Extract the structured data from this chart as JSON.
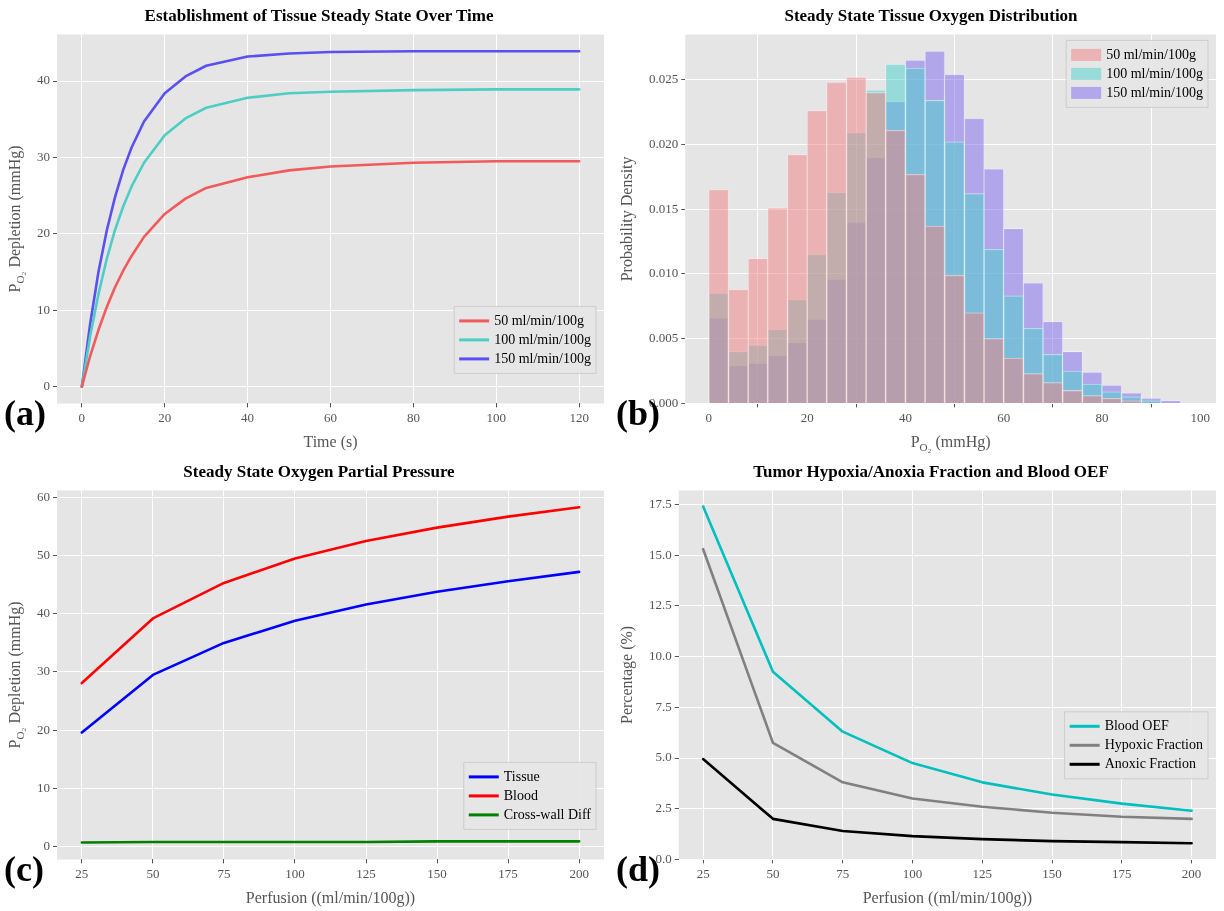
{
  "chart_data": [
    {
      "type": "line",
      "title": "Establishment of Tissue Steady State Over Time",
      "xlabel": "Time (s)",
      "ylabel": "P$_{O₂}$ Depletion (mmHg)",
      "x": [
        0,
        2,
        4,
        6,
        8,
        10,
        12,
        15,
        20,
        25,
        30,
        40,
        50,
        60,
        80,
        100,
        120
      ],
      "series": [
        {
          "name": "50 ml/min/100g",
          "color": "#f05a5a",
          "values": [
            0,
            4.0,
            7.4,
            10.4,
            13.0,
            15.2,
            17.1,
            19.6,
            22.6,
            24.6,
            26.0,
            27.4,
            28.3,
            28.8,
            29.3,
            29.5,
            29.5
          ]
        },
        {
          "name": "100 ml/min/100g",
          "color": "#4ecdc4",
          "values": [
            0,
            6.6,
            12.1,
            16.7,
            20.5,
            23.6,
            26.2,
            29.3,
            32.9,
            35.1,
            36.5,
            37.8,
            38.4,
            38.6,
            38.8,
            38.9,
            38.9
          ]
        },
        {
          "name": "150 ml/min/100g",
          "color": "#5a50f0",
          "values": [
            0,
            8.2,
            15.0,
            20.4,
            24.8,
            28.4,
            31.3,
            34.7,
            38.4,
            40.6,
            42.0,
            43.2,
            43.6,
            43.8,
            43.9,
            43.9,
            43.9
          ]
        }
      ],
      "xlim": [
        -6,
        126
      ],
      "xticks": [
        0,
        20,
        40,
        60,
        80,
        100,
        120
      ],
      "ylim": [
        -2.2,
        46.1
      ],
      "yticks": [
        0,
        10,
        20,
        30,
        40
      ],
      "grid": true,
      "legend": "bottom right",
      "marker": "none",
      "line_style": "solid",
      "annotations": [
        "(a)"
      ]
    },
    {
      "type": "histogram",
      "title": "Steady State Tissue Oxygen Distribution",
      "xlabel": "P$_{O₂}$ (mmHg)",
      "ylabel": "Probability Density",
      "bins": [
        0,
        4,
        8,
        12,
        16,
        20,
        24,
        28,
        32,
        36,
        40,
        44,
        48,
        52,
        56,
        60,
        64,
        68,
        72,
        76,
        80,
        84,
        88,
        92,
        96
      ],
      "series": [
        {
          "name": "50 ml/min/100g",
          "color": "#f08080",
          "values": [
            0.0165,
            0.0088,
            0.0112,
            0.0151,
            0.0192,
            0.0226,
            0.0248,
            0.0252,
            0.024,
            0.0211,
            0.0177,
            0.0137,
            0.0099,
            0.007,
            0.005,
            0.0035,
            0.0023,
            0.0016,
            0.001,
            0.0006,
            0.0004,
            0.0002,
            null,
            0
          ]
        },
        {
          "name": "100 ml/min/100g",
          "color": "#48d1cc",
          "values": [
            0.0085,
            0.004,
            0.0045,
            0.0057,
            0.008,
            0.0115,
            0.0163,
            0.0209,
            0.0242,
            0.0262,
            0.0259,
            0.0234,
            0.0202,
            0.0162,
            0.0119,
            0.0083,
            0.0058,
            0.0038,
            0.0025,
            0.0015,
            0.0009,
            0.0005,
            0.0002,
            0
          ]
        },
        {
          "name": "150 ml/min/100g",
          "color": "#7b68ee",
          "values": [
            0.0066,
            0.0029,
            0.0031,
            0.0037,
            0.0047,
            0.0065,
            0.0096,
            0.014,
            0.019,
            0.0233,
            0.0265,
            0.0272,
            0.0254,
            0.022,
            0.0181,
            0.0135,
            0.0093,
            0.0063,
            0.004,
            0.0024,
            0.0014,
            0.0008,
            0.0004,
            0.0002
          ]
        }
      ],
      "xlim": [
        -4.8,
        103.2
      ],
      "xticks": [
        0,
        20,
        40,
        60,
        80,
        100
      ],
      "ylim": [
        0,
        0.0285
      ],
      "yticks": [
        {
          "value": 0,
          "label": "0.000"
        },
        0.005,
        {
          "value": 0.01,
          "label": "0.010"
        },
        0.015,
        {
          "value": 0.02,
          "label": "0.020"
        },
        0.025
      ],
      "grid": true,
      "legend": "top right",
      "annotations": [
        "(b)"
      ]
    },
    {
      "type": "line",
      "title": "Steady State Oxygen Partial Pressure",
      "xlabel": "Perfusion ((ml/min/100g))",
      "ylabel": "P$_{O₂}$ Depletion (mmHg)",
      "x": [
        25,
        50,
        75,
        100,
        125,
        150,
        175,
        200
      ],
      "series": [
        {
          "name": "Tissue",
          "color": "#0000ff",
          "values": [
            19.6,
            29.5,
            35.0,
            38.8,
            41.6,
            43.8,
            45.6,
            47.2
          ]
        },
        {
          "name": "Blood",
          "color": "#ff0000",
          "values": [
            28.1,
            39.2,
            45.3,
            49.5,
            52.5,
            54.8,
            56.7,
            58.3
          ]
        },
        {
          "name": "Cross-wall Diff",
          "color": "#008000",
          "values": [
            0.7,
            0.8,
            0.8,
            0.8,
            0.8,
            0.9,
            0.9,
            0.9
          ]
        }
      ],
      "xlim": [
        16.25,
        208.75
      ],
      "xticks": [
        25,
        50,
        75,
        100,
        125,
        150,
        175,
        200
      ],
      "ylim": [
        -2.2,
        61.2
      ],
      "yticks": [
        0,
        10,
        20,
        30,
        40,
        50,
        60
      ],
      "grid": true,
      "legend": "bottom right",
      "marker": "none",
      "line_style": "solid",
      "annotations": [
        "(c)"
      ]
    },
    {
      "type": "line",
      "title": "Tumor Hypoxia/Anoxia Fraction and Blood OEF",
      "xlabel": "Perfusion ((ml/min/100g))",
      "ylabel": "Percentage (%)",
      "x": [
        25,
        50,
        75,
        100,
        125,
        150,
        175,
        200
      ],
      "series": [
        {
          "name": "Blood OEF",
          "color": "#00bfbf",
          "values": [
            17.4,
            9.25,
            6.3,
            4.75,
            3.8,
            3.2,
            2.75,
            2.4
          ]
        },
        {
          "name": "Hypoxic Fraction",
          "color": "#808080",
          "values": [
            15.3,
            5.75,
            3.8,
            3.0,
            2.6,
            2.3,
            2.1,
            2.0
          ]
        },
        {
          "name": "Anoxic Fraction",
          "color": "#000000",
          "values": [
            4.95,
            2.0,
            1.4,
            1.15,
            1.0,
            0.9,
            0.85,
            0.8
          ]
        }
      ],
      "xlim": [
        16.25,
        208.75
      ],
      "xticks": [
        25,
        50,
        75,
        100,
        125,
        150,
        175,
        200
      ],
      "ylim": [
        0,
        18.2
      ],
      "yticks": [
        {
          "value": 0,
          "label": "0.0"
        },
        2.5,
        {
          "value": 5,
          "label": "5.0"
        },
        7.5,
        {
          "value": 10,
          "label": "10.0"
        },
        12.5,
        {
          "value": 15,
          "label": "15.0"
        },
        17.5
      ],
      "grid": true,
      "legend": "right",
      "marker": "none",
      "line_style": "solid",
      "annotations": [
        "(d)"
      ]
    }
  ]
}
